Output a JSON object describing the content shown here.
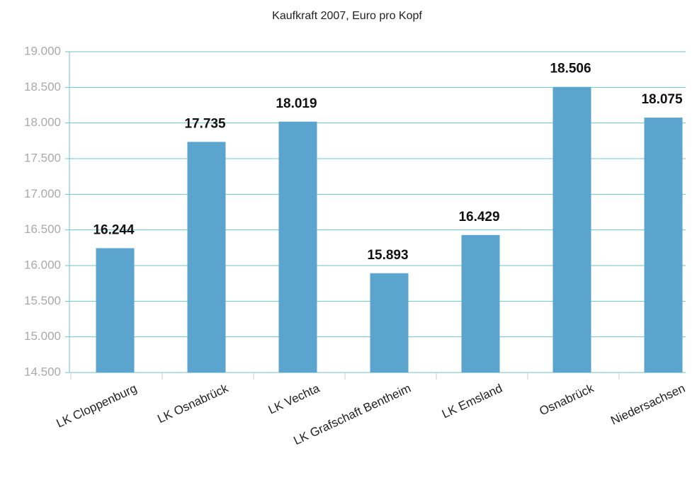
{
  "chart_data": {
    "type": "bar",
    "title": "Kaufkraft 2007, Euro pro Kopf",
    "categories": [
      "LK Cloppenburg",
      "LK Osnabrück",
      "LK Vechta",
      "LK Grafschaft Bentheim",
      "LK Emsland",
      "Osnabrück",
      "Niedersachsen"
    ],
    "values": [
      16244,
      17735,
      18019,
      15893,
      16429,
      18506,
      18075
    ],
    "value_labels": [
      "16.244",
      "17.735",
      "18.019",
      "15.893",
      "16.429",
      "18.506",
      "18.075"
    ],
    "color": "#5ba4cd",
    "ylim": [
      14500,
      19000
    ],
    "yticks": [
      {
        "value": 14500,
        "label": "14.500"
      },
      {
        "value": 15000,
        "label": "15.000"
      },
      {
        "value": 15500,
        "label": "15.500"
      },
      {
        "value": 16000,
        "label": "16.000"
      },
      {
        "value": 16500,
        "label": "16.500"
      },
      {
        "value": 17000,
        "label": "17.000"
      },
      {
        "value": 17500,
        "label": "17.500"
      },
      {
        "value": 18000,
        "label": "18.000"
      },
      {
        "value": 18500,
        "label": "18.500"
      },
      {
        "value": 19000,
        "label": "19.000"
      }
    ],
    "grid": true
  }
}
